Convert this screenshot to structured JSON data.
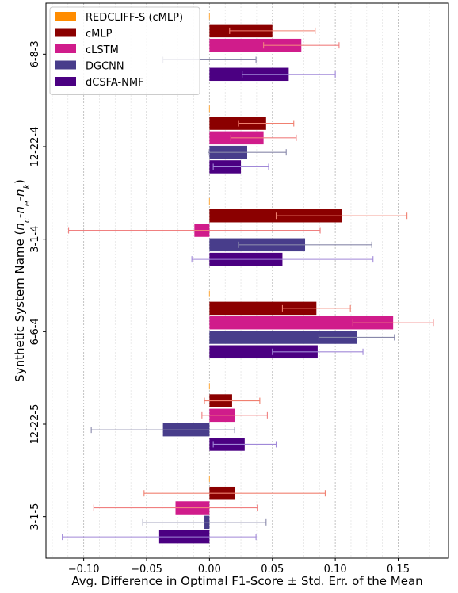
{
  "chart_data": {
    "type": "bar",
    "orientation": "horizontal",
    "title": "",
    "xlabel": "Avg. Difference in Optimal F1-Score ± Std. Err. of the Mean",
    "ylabel": "Synthetic System Name (nc-ne-nk)",
    "ylabel_parts": {
      "prefix": "Synthetic System Name (",
      "n1": "n",
      "s1": "c",
      "dash1": "-",
      "n2": "n",
      "s2": "e",
      "dash2": "-",
      "n3": "n",
      "s3": "k",
      "suffix": ")"
    },
    "xlim": [
      -0.13,
      0.19
    ],
    "xticks": [
      -0.1,
      -0.05,
      0.0,
      0.05,
      0.1,
      0.15
    ],
    "xtick_labels": [
      "−0.10",
      "−0.05",
      "0.00",
      "0.05",
      "0.10",
      "0.15"
    ],
    "grid": "vertical dashed",
    "legend_position": "top-left",
    "categories": [
      "6-8-3",
      "12-22-4",
      "3-1-4",
      "6-6-4",
      "12-22-5",
      "3-1-5"
    ],
    "series": [
      {
        "name": "REDCLIFF-S (cMLP)",
        "color": "#ff8c00",
        "err_color": "#ffb04a",
        "values": [
          0,
          0,
          0,
          0,
          0,
          0
        ],
        "errors": [
          0.0,
          0.0,
          0.0,
          0.0,
          0.0,
          0.0
        ]
      },
      {
        "name": "cMLP",
        "color": "#8b0000",
        "err_color": "#f08070",
        "values": [
          0.05,
          0.045,
          0.105,
          0.085,
          0.018,
          0.02
        ],
        "errors": [
          0.034,
          0.022,
          0.052,
          0.027,
          0.022,
          0.072
        ]
      },
      {
        "name": "cLSTM",
        "color": "#d01c8b",
        "err_color": "#f08080",
        "values": [
          0.073,
          0.043,
          -0.012,
          0.146,
          0.02,
          -0.027
        ],
        "errors": [
          0.03,
          0.026,
          0.1,
          0.032,
          0.026,
          0.065
        ]
      },
      {
        "name": "DGCNN",
        "color": "#483d8b",
        "err_color": "#8888aa",
        "values": [
          0.0,
          0.03,
          0.076,
          0.117,
          -0.037,
          -0.004
        ],
        "errors": [
          0.037,
          0.031,
          0.053,
          0.03,
          0.057,
          0.049
        ]
      },
      {
        "name": "dCSFA-NMF",
        "color": "#4b0082",
        "err_color": "#a088d8",
        "values": [
          0.063,
          0.025,
          0.058,
          0.086,
          0.028,
          -0.04
        ],
        "errors": [
          0.037,
          0.022,
          0.072,
          0.036,
          0.025,
          0.077
        ]
      }
    ]
  }
}
